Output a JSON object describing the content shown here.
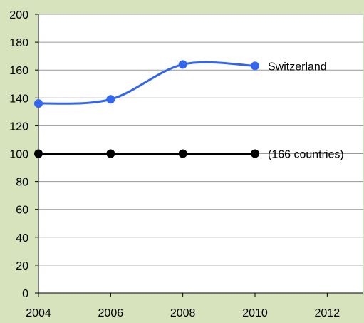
{
  "chart_data": {
    "type": "line",
    "title": "",
    "xlabel": "",
    "ylabel": "",
    "xlim": [
      2004,
      2013
    ],
    "ylim": [
      0,
      200
    ],
    "x_ticks": [
      "2004",
      "2006",
      "2008",
      "2010",
      "2012"
    ],
    "y_ticks": [
      "0",
      "20",
      "40",
      "60",
      "80",
      "100",
      "120",
      "140",
      "160",
      "180",
      "200"
    ],
    "grid": "horizontal",
    "series": [
      {
        "name": "Switzerland",
        "color": "#3366ee",
        "smooth": true,
        "x": [
          2004,
          2006,
          2008,
          2010
        ],
        "values": [
          136,
          139,
          164,
          163
        ]
      },
      {
        "name": "(166 countries)",
        "color": "#000000",
        "smooth": false,
        "x": [
          2004,
          2006,
          2008,
          2010
        ],
        "values": [
          100,
          100,
          100,
          100
        ]
      }
    ]
  }
}
